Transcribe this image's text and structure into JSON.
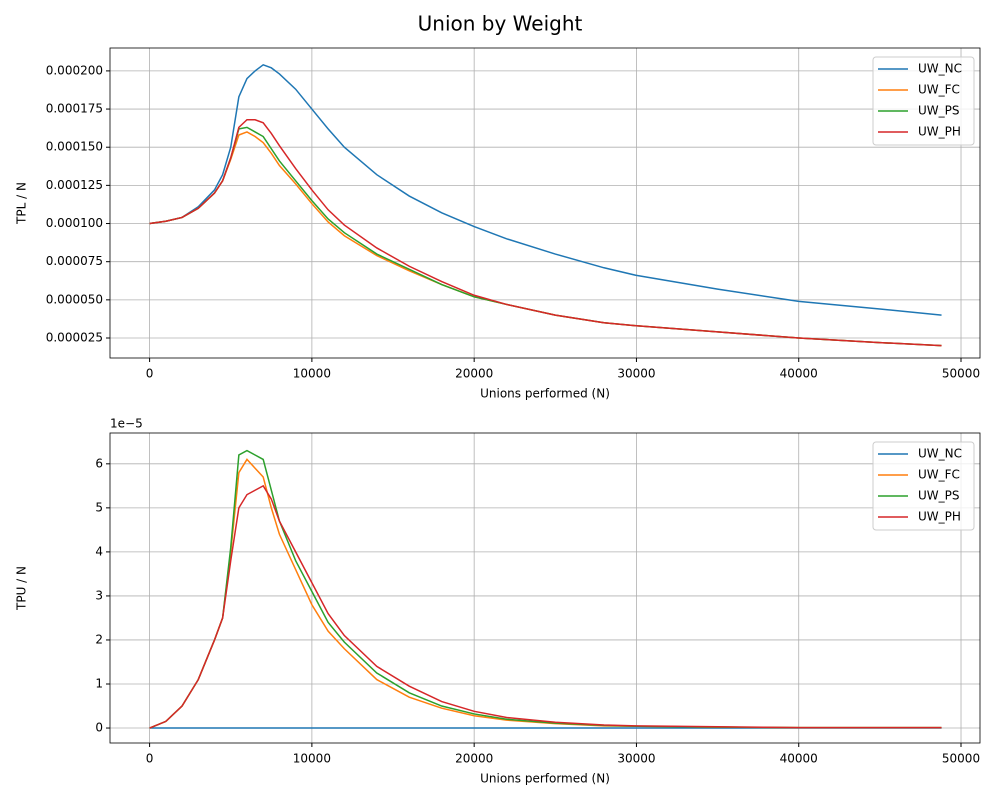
{
  "title": "Union by Weight",
  "chart_data": [
    {
      "type": "line",
      "xlabel": "Unions performed (N)",
      "ylabel": "TPL / N",
      "grid": true,
      "legend": "upper right",
      "x": [
        0,
        1000,
        2000,
        3000,
        4000,
        4500,
        5000,
        5500,
        6000,
        6500,
        7000,
        7500,
        8000,
        9000,
        10000,
        11000,
        12000,
        14000,
        16000,
        18000,
        20000,
        22000,
        25000,
        28000,
        30000,
        35000,
        40000,
        45000,
        48800
      ],
      "xlim": [
        -2440,
        51170
      ],
      "xticks": [
        0,
        10000,
        20000,
        30000,
        40000,
        50000
      ],
      "ylim": [
        1.19e-05,
        0.000215
      ],
      "yticks": [
        {
          "value": 2.5e-05,
          "label": "0.000025"
        },
        {
          "value": 5e-05,
          "label": "0.000050"
        },
        {
          "value": 7.5e-05,
          "label": "0.000075"
        },
        {
          "value": 0.0001,
          "label": "0.000100"
        },
        {
          "value": 0.000125,
          "label": "0.000125"
        },
        {
          "value": 0.00015,
          "label": "0.000150"
        },
        {
          "value": 0.000175,
          "label": "0.000175"
        },
        {
          "value": 0.0002,
          "label": "0.000200"
        }
      ],
      "series": [
        {
          "name": "UW_NC",
          "color": "#1f77b4",
          "values": [
            0.0001,
            0.0001015,
            0.000104,
            0.000111,
            0.000122,
            0.000132,
            0.00015,
            0.000183,
            0.000195,
            0.0002,
            0.000204,
            0.000202,
            0.000198,
            0.000188,
            0.000175,
            0.000162,
            0.00015,
            0.000132,
            0.000118,
            0.000107,
            9.8e-05,
            9e-05,
            8e-05,
            7.1e-05,
            6.6e-05,
            5.7e-05,
            4.9e-05,
            4.4e-05,
            4e-05
          ]
        },
        {
          "name": "UW_FC",
          "color": "#ff7f0e",
          "values": [
            0.0001,
            0.0001015,
            0.000104,
            0.00011,
            0.00012,
            0.000128,
            0.000142,
            0.000158,
            0.00016,
            0.000157,
            0.000153,
            0.000146,
            0.000138,
            0.000126,
            0.000113,
            0.000101,
            9.2e-05,
            7.9e-05,
            6.9e-05,
            6e-05,
            5.2e-05,
            4.7e-05,
            4e-05,
            3.5e-05,
            3.3e-05,
            2.9e-05,
            2.5e-05,
            2.2e-05,
            2e-05
          ]
        },
        {
          "name": "UW_PS",
          "color": "#2ca02c",
          "values": [
            0.0001,
            0.0001015,
            0.000104,
            0.00011,
            0.00012,
            0.000128,
            0.000143,
            0.000162,
            0.000163,
            0.00016,
            0.000157,
            0.000149,
            0.000141,
            0.000128,
            0.000115,
            0.000103,
            9.4e-05,
            8e-05,
            7e-05,
            6e-05,
            5.2e-05,
            4.7e-05,
            4e-05,
            3.5e-05,
            3.3e-05,
            2.9e-05,
            2.5e-05,
            2.2e-05,
            2e-05
          ]
        },
        {
          "name": "UW_PH",
          "color": "#d62728",
          "values": [
            0.0001,
            0.0001015,
            0.000104,
            0.00011,
            0.00012,
            0.000128,
            0.000143,
            0.000163,
            0.000168,
            0.000168,
            0.000166,
            0.000159,
            0.000151,
            0.000136,
            0.000122,
            0.000109,
            9.9e-05,
            8.4e-05,
            7.2e-05,
            6.2e-05,
            5.3e-05,
            4.7e-05,
            4e-05,
            3.5e-05,
            3.3e-05,
            2.9e-05,
            2.5e-05,
            2.2e-05,
            2e-05
          ]
        }
      ]
    },
    {
      "type": "line",
      "xlabel": "Unions performed (N)",
      "ylabel": "TPU / N",
      "offset_text": "1e−5",
      "grid": true,
      "legend": "upper right",
      "x": [
        0,
        1000,
        2000,
        3000,
        4000,
        4500,
        5000,
        5500,
        6000,
        6500,
        7000,
        7500,
        8000,
        9000,
        10000,
        11000,
        12000,
        14000,
        16000,
        18000,
        20000,
        22000,
        25000,
        28000,
        30000,
        35000,
        40000,
        45000,
        48800
      ],
      "xlim": [
        -2440,
        51170
      ],
      "xticks": [
        0,
        10000,
        20000,
        30000,
        40000,
        50000
      ],
      "ylim": [
        -0.34,
        6.7
      ],
      "yticks": [
        0,
        1,
        2,
        3,
        4,
        5,
        6
      ],
      "series": [
        {
          "name": "UW_NC",
          "color": "#1f77b4",
          "values": [
            0,
            0,
            0,
            0,
            0,
            0,
            0,
            0,
            0,
            0,
            0,
            0,
            0,
            0,
            0,
            0,
            0,
            0,
            0,
            0,
            0,
            0,
            0,
            0,
            0,
            0,
            0,
            0,
            0
          ]
        },
        {
          "name": "UW_FC",
          "color": "#ff7f0e",
          "values": [
            0,
            0.15,
            0.5,
            1.1,
            2.0,
            2.5,
            4.0,
            5.8,
            6.1,
            5.9,
            5.7,
            5.0,
            4.4,
            3.6,
            2.8,
            2.2,
            1.8,
            1.1,
            0.7,
            0.45,
            0.28,
            0.18,
            0.1,
            0.05,
            0.04,
            0.02,
            0.01,
            0.01,
            0.01
          ]
        },
        {
          "name": "UW_PS",
          "color": "#2ca02c",
          "values": [
            0,
            0.15,
            0.5,
            1.1,
            2.0,
            2.5,
            4.1,
            6.2,
            6.3,
            6.2,
            6.1,
            5.4,
            4.7,
            3.8,
            3.1,
            2.4,
            1.95,
            1.25,
            0.8,
            0.5,
            0.32,
            0.2,
            0.11,
            0.06,
            0.04,
            0.02,
            0.01,
            0.01,
            0.01
          ]
        },
        {
          "name": "UW_PH",
          "color": "#d62728",
          "values": [
            0,
            0.15,
            0.5,
            1.1,
            2.0,
            2.5,
            3.8,
            5.0,
            5.3,
            5.4,
            5.5,
            5.2,
            4.7,
            4.0,
            3.3,
            2.6,
            2.1,
            1.4,
            0.95,
            0.6,
            0.38,
            0.24,
            0.13,
            0.07,
            0.05,
            0.03,
            0.01,
            0.01,
            0.01
          ]
        }
      ]
    }
  ]
}
